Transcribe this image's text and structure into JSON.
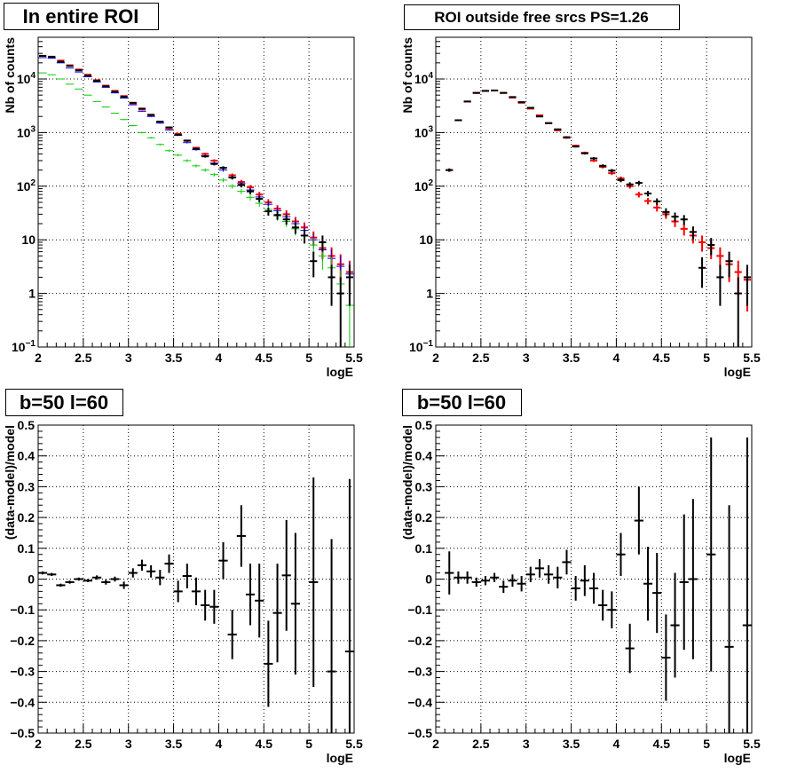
{
  "chart_data": [
    {
      "type": "scatter",
      "title": "In entire ROI",
      "xlabel": "logE",
      "ylabel": "Nb of counts",
      "xlim": [
        2,
        5.5
      ],
      "ylim": [
        0.1,
        60000
      ],
      "log_y": true,
      "grid": true,
      "x_ticks": [
        "2",
        "2.5",
        "3",
        "3.5",
        "4",
        "4.5",
        "5",
        "5.5"
      ],
      "y_ticks": [
        {
          "v": 0.1,
          "b": "10",
          "e": "−1"
        },
        {
          "v": 1,
          "b": "1",
          "e": ""
        },
        {
          "v": 10,
          "b": "10",
          "e": ""
        },
        {
          "v": 100,
          "b": "10",
          "e": "2"
        },
        {
          "v": 1000,
          "b": "10",
          "e": "3"
        },
        {
          "v": 10000,
          "b": "10",
          "e": "4"
        }
      ],
      "x": [
        2.05,
        2.15,
        2.25,
        2.35,
        2.45,
        2.55,
        2.65,
        2.75,
        2.85,
        2.95,
        3.05,
        3.15,
        3.25,
        3.35,
        3.45,
        3.55,
        3.65,
        3.75,
        3.85,
        3.95,
        4.05,
        4.15,
        4.25,
        4.35,
        4.45,
        4.55,
        4.65,
        4.75,
        4.85,
        4.95,
        5.05,
        5.15,
        5.25,
        5.35,
        5.45
      ],
      "series": [
        {
          "color": "#ff0000",
          "values": [
            27000,
            26000,
            22000,
            18000,
            15000,
            12000,
            9500,
            7500,
            6000,
            4800,
            3500,
            2700,
            2100,
            1600,
            1200,
            950,
            700,
            520,
            400,
            300,
            220,
            160,
            120,
            95,
            70,
            50,
            38,
            30,
            22,
            17,
            11,
            7,
            5,
            3.5,
            2.5
          ]
        },
        {
          "color": "#0000ff",
          "values": [
            25000,
            24500,
            20000,
            16000,
            13500,
            11000,
            8800,
            7000,
            5500,
            4400,
            3300,
            2500,
            2000,
            1500,
            1120,
            890,
            650,
            480,
            370,
            270,
            200,
            148,
            112,
            85,
            63,
            46,
            35,
            27,
            20,
            15,
            10,
            6.5,
            4.5,
            3.2,
            2.3
          ]
        },
        {
          "color": "#00cc00",
          "values": [
            13000,
            12000,
            10000,
            8000,
            6500,
            5000,
            3800,
            3000,
            2300,
            1750,
            1350,
            1000,
            800,
            600,
            460,
            380,
            300,
            240,
            200,
            165,
            130,
            100,
            80,
            62,
            48,
            37,
            28,
            22,
            16,
            12,
            8,
            5,
            3,
            1.5,
            0.6
          ]
        },
        {
          "color": "#000000",
          "values": [
            27000,
            26000,
            21000,
            17500,
            14500,
            11500,
            9200,
            7300,
            5800,
            4650,
            3600,
            2800,
            2150,
            1600,
            1250,
            910,
            710,
            500,
            360,
            260,
            220,
            145,
            105,
            80,
            58,
            34,
            29,
            24,
            17,
            12,
            4,
            9,
            2,
            1,
            2
          ]
        }
      ]
    },
    {
      "type": "scatter",
      "title": "ROI outside free srcs PS=1.26",
      "xlabel": "logE",
      "ylabel": "Nb of counts",
      "xlim": [
        2,
        5.5
      ],
      "ylim": [
        0.1,
        60000
      ],
      "log_y": true,
      "grid": true,
      "x_ticks": [
        "2",
        "2.5",
        "3",
        "3.5",
        "4",
        "4.5",
        "5",
        "5.5"
      ],
      "y_ticks": [
        {
          "v": 0.1,
          "b": "10",
          "e": "−1"
        },
        {
          "v": 1,
          "b": "1",
          "e": ""
        },
        {
          "v": 10,
          "b": "10",
          "e": ""
        },
        {
          "v": 100,
          "b": "10",
          "e": "2"
        },
        {
          "v": 1000,
          "b": "10",
          "e": "3"
        },
        {
          "v": 10000,
          "b": "10",
          "e": "4"
        }
      ],
      "x": [
        2.15,
        2.25,
        2.35,
        2.45,
        2.55,
        2.65,
        2.75,
        2.85,
        2.95,
        3.05,
        3.15,
        3.25,
        3.35,
        3.45,
        3.55,
        3.65,
        3.75,
        3.85,
        3.95,
        4.05,
        4.15,
        4.25,
        4.35,
        4.45,
        4.55,
        4.65,
        4.75,
        4.85,
        4.95,
        5.05,
        5.15,
        5.25,
        5.35,
        5.45
      ],
      "series": [
        {
          "color": "#ff0000",
          "values": [
            200,
            1700,
            3800,
            5500,
            6000,
            6100,
            5500,
            4500,
            3600,
            2800,
            2100,
            1500,
            1100,
            800,
            570,
            420,
            300,
            230,
            175,
            140,
            100,
            70,
            53,
            40,
            30,
            22,
            16,
            12,
            9,
            7,
            5,
            3.5,
            2.5,
            1.8
          ]
        },
        {
          "color": "#000000",
          "values": [
            200,
            1700,
            3800,
            5500,
            6000,
            6100,
            5500,
            4600,
            3700,
            2900,
            2000,
            1500,
            1150,
            820,
            550,
            410,
            330,
            240,
            195,
            130,
            108,
            115,
            73,
            52,
            33,
            27,
            24,
            14,
            3,
            8,
            2,
            4,
            1,
            2
          ]
        }
      ]
    },
    {
      "type": "scatter",
      "title": "b=50 l=60",
      "xlabel": "logE",
      "ylabel": "(data-model)/model",
      "xlim": [
        2,
        5.5
      ],
      "ylim": [
        -0.5,
        0.5
      ],
      "grid": true,
      "x_ticks": [
        "2",
        "2.5",
        "3",
        "3.5",
        "4",
        "4.5",
        "5",
        "5.5"
      ],
      "y_ticks_text": [
        "−0.5",
        "−0.4",
        "−0.3",
        "−0.2",
        "−0.1",
        "0",
        "0.1",
        "0.2",
        "0.3",
        "0.4",
        "0.5"
      ],
      "x": [
        2.05,
        2.15,
        2.25,
        2.35,
        2.45,
        2.55,
        2.65,
        2.75,
        2.85,
        2.95,
        3.05,
        3.15,
        3.25,
        3.35,
        3.45,
        3.55,
        3.65,
        3.75,
        3.85,
        3.95,
        4.05,
        4.15,
        4.25,
        4.35,
        4.45,
        4.55,
        4.65,
        4.75,
        4.85,
        4.95,
        5.05,
        5.15,
        5.25,
        5.35,
        5.45
      ],
      "values": [
        0.02,
        0.015,
        -0.02,
        -0.01,
        0.0,
        -0.005,
        0.005,
        -0.01,
        0.0,
        -0.02,
        0.02,
        0.045,
        0.025,
        0.005,
        0.05,
        -0.04,
        0.01,
        -0.04,
        -0.085,
        -0.09,
        0.06,
        -0.18,
        0.14,
        -0.05,
        -0.07,
        -0.275,
        -0.11,
        0.012,
        -0.08,
        null,
        -0.01,
        null,
        -0.3,
        null,
        -0.235
      ],
      "errors": [
        0.005,
        0.005,
        0.005,
        0.005,
        0.005,
        0.005,
        0.007,
        0.008,
        0.008,
        0.012,
        0.015,
        0.018,
        0.02,
        0.025,
        0.03,
        0.035,
        0.04,
        0.045,
        0.05,
        0.055,
        0.06,
        0.08,
        0.1,
        0.1,
        0.12,
        0.14,
        0.16,
        0.18,
        0.23,
        null,
        0.34,
        null,
        0.43,
        null,
        0.56
      ]
    },
    {
      "type": "scatter",
      "title": "b=50 l=60",
      "xlabel": "logE",
      "ylabel": "(data-model)/model",
      "xlim": [
        2,
        5.5
      ],
      "ylim": [
        -0.5,
        0.5
      ],
      "grid": true,
      "x_ticks": [
        "2",
        "2.5",
        "3",
        "3.5",
        "4",
        "4.5",
        "5",
        "5.5"
      ],
      "y_ticks_text": [
        "−0.5",
        "−0.4",
        "−0.3",
        "−0.2",
        "−0.1",
        "0",
        "0.1",
        "0.2",
        "0.3",
        "0.4",
        "0.5"
      ],
      "x": [
        2.15,
        2.25,
        2.35,
        2.45,
        2.55,
        2.65,
        2.75,
        2.85,
        2.95,
        3.05,
        3.15,
        3.25,
        3.35,
        3.45,
        3.55,
        3.65,
        3.75,
        3.85,
        3.95,
        4.05,
        4.15,
        4.25,
        4.35,
        4.45,
        4.55,
        4.65,
        4.75,
        4.85,
        4.95,
        5.05,
        5.15,
        5.25,
        5.35,
        5.45
      ],
      "values": [
        0.02,
        0.005,
        0.005,
        -0.01,
        -0.005,
        0.005,
        -0.025,
        -0.005,
        -0.015,
        0.015,
        0.035,
        0.015,
        0.005,
        0.055,
        -0.03,
        -0.005,
        -0.03,
        -0.085,
        -0.1,
        0.08,
        -0.225,
        0.19,
        -0.015,
        -0.045,
        -0.255,
        -0.15,
        -0.01,
        0.0,
        null,
        0.08,
        null,
        -0.22,
        null,
        -0.15
      ],
      "errors": [
        0.07,
        0.02,
        0.02,
        0.015,
        0.015,
        0.015,
        0.02,
        0.02,
        0.025,
        0.025,
        0.03,
        0.03,
        0.035,
        0.04,
        0.04,
        0.05,
        0.05,
        0.05,
        0.06,
        0.07,
        0.08,
        0.11,
        0.12,
        0.13,
        0.14,
        0.17,
        0.22,
        0.26,
        null,
        0.38,
        null,
        0.46,
        null,
        0.61
      ]
    }
  ]
}
